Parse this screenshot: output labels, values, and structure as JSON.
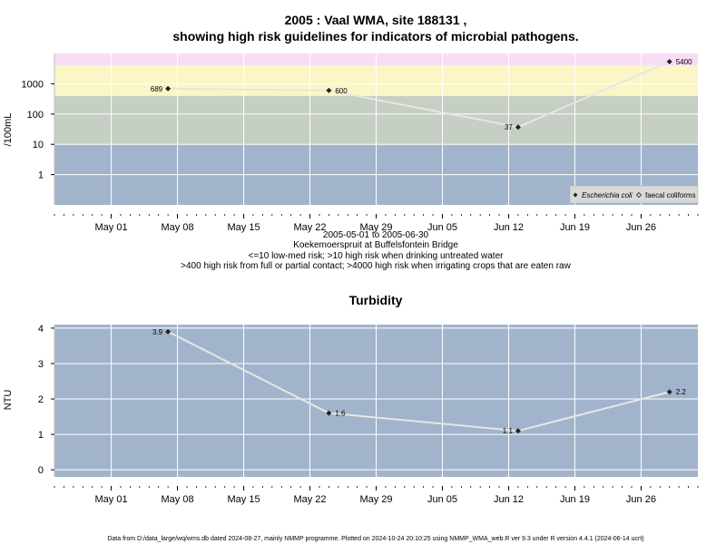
{
  "chart_data": [
    {
      "type": "line",
      "title_line1": "2005 : Vaal WMA, site 188131 ,",
      "title_line2": "showing high risk guidelines for indicators of microbial pathogens.",
      "ylabel": "/100mL",
      "y_scale": "log",
      "ylim": [
        0.1,
        10000
      ],
      "y_ticks": [
        1,
        10,
        100,
        1000
      ],
      "xlim": [
        "2005-04-25",
        "2005-07-02"
      ],
      "x_ticks": [
        {
          "date": "2005-05-01",
          "label": "May 01"
        },
        {
          "date": "2005-05-08",
          "label": "May 08"
        },
        {
          "date": "2005-05-15",
          "label": "May 15"
        },
        {
          "date": "2005-05-22",
          "label": "May 22"
        },
        {
          "date": "2005-05-29",
          "label": "May 29"
        },
        {
          "date": "2005-06-05",
          "label": "Jun 05"
        },
        {
          "date": "2005-06-12",
          "label": "Jun 12"
        },
        {
          "date": "2005-06-19",
          "label": "Jun 19"
        },
        {
          "date": "2005-06-26",
          "label": "Jun 26"
        }
      ],
      "bands": [
        {
          "from": 0.1,
          "to": 10,
          "color": "#a2b4cc"
        },
        {
          "from": 10,
          "to": 400,
          "color": "#c6cfc4"
        },
        {
          "from": 400,
          "to": 4000,
          "color": "#fbf6c6"
        },
        {
          "from": 4000,
          "to": 10000,
          "color": "#f8ddf4"
        }
      ],
      "series": [
        {
          "name": "Escherichia coli",
          "points": [
            {
              "date": "2005-05-07",
              "value": 689,
              "label": "689"
            },
            {
              "date": "2005-05-24",
              "value": 600,
              "label": "600"
            },
            {
              "date": "2005-06-13",
              "value": 37,
              "label": "37"
            },
            {
              "date": "2005-06-29",
              "value": 5400,
              "label": "5400"
            }
          ]
        },
        {
          "name": "faecal coliforms",
          "points": []
        }
      ],
      "legend_position": "bottom-right",
      "grid": true
    },
    {
      "type": "line",
      "title": "Turbidity",
      "ylabel": "NTU",
      "y_scale": "linear",
      "ylim": [
        -0.2,
        4.1
      ],
      "y_ticks": [
        0,
        1,
        2,
        3,
        4
      ],
      "xlim": [
        "2005-04-25",
        "2005-07-02"
      ],
      "x_ticks": [
        {
          "date": "2005-05-01",
          "label": "May 01"
        },
        {
          "date": "2005-05-08",
          "label": "May 08"
        },
        {
          "date": "2005-05-15",
          "label": "May 15"
        },
        {
          "date": "2005-05-22",
          "label": "May 22"
        },
        {
          "date": "2005-05-29",
          "label": "May 29"
        },
        {
          "date": "2005-06-05",
          "label": "Jun 05"
        },
        {
          "date": "2005-06-12",
          "label": "Jun 12"
        },
        {
          "date": "2005-06-19",
          "label": "Jun 19"
        },
        {
          "date": "2005-06-26",
          "label": "Jun 26"
        }
      ],
      "background": "#a2b4cc",
      "series": [
        {
          "name": "",
          "points": [
            {
              "date": "2005-05-07",
              "value": 3.9,
              "label": "3.9"
            },
            {
              "date": "2005-05-24",
              "value": 1.6,
              "label": "1.6"
            },
            {
              "date": "2005-06-13",
              "value": 1.1,
              "label": "1.1"
            },
            {
              "date": "2005-06-29",
              "value": 2.2,
              "label": "2.2"
            }
          ]
        }
      ],
      "grid": true
    }
  ],
  "notes": {
    "date_range": "2005-05-01 to 2005-06-30",
    "site": "Koekemoerspruit at Buffelsfontein Bridge",
    "guideline1": "<=10 low-med risk; >10 high risk when drinking untreated water",
    "guideline2": ">400 high risk from full or partial contact; >4000 high risk when irrigating crops that are eaten raw"
  },
  "footer": "Data from D:/data_large/wq/wms.db dated 2024-08-27, mainly NMMP programme. Plotted on 2024-10-24 20:10:25 using NMMP_WMA_web.R ver 9.3 under R version 4.4.1 (2024-06-14 ucrt)",
  "colors": {
    "grid": "#ffffff",
    "series_line": "#e6e6e6",
    "marker": "#222222",
    "legend_bg": "#d9d9d9"
  }
}
